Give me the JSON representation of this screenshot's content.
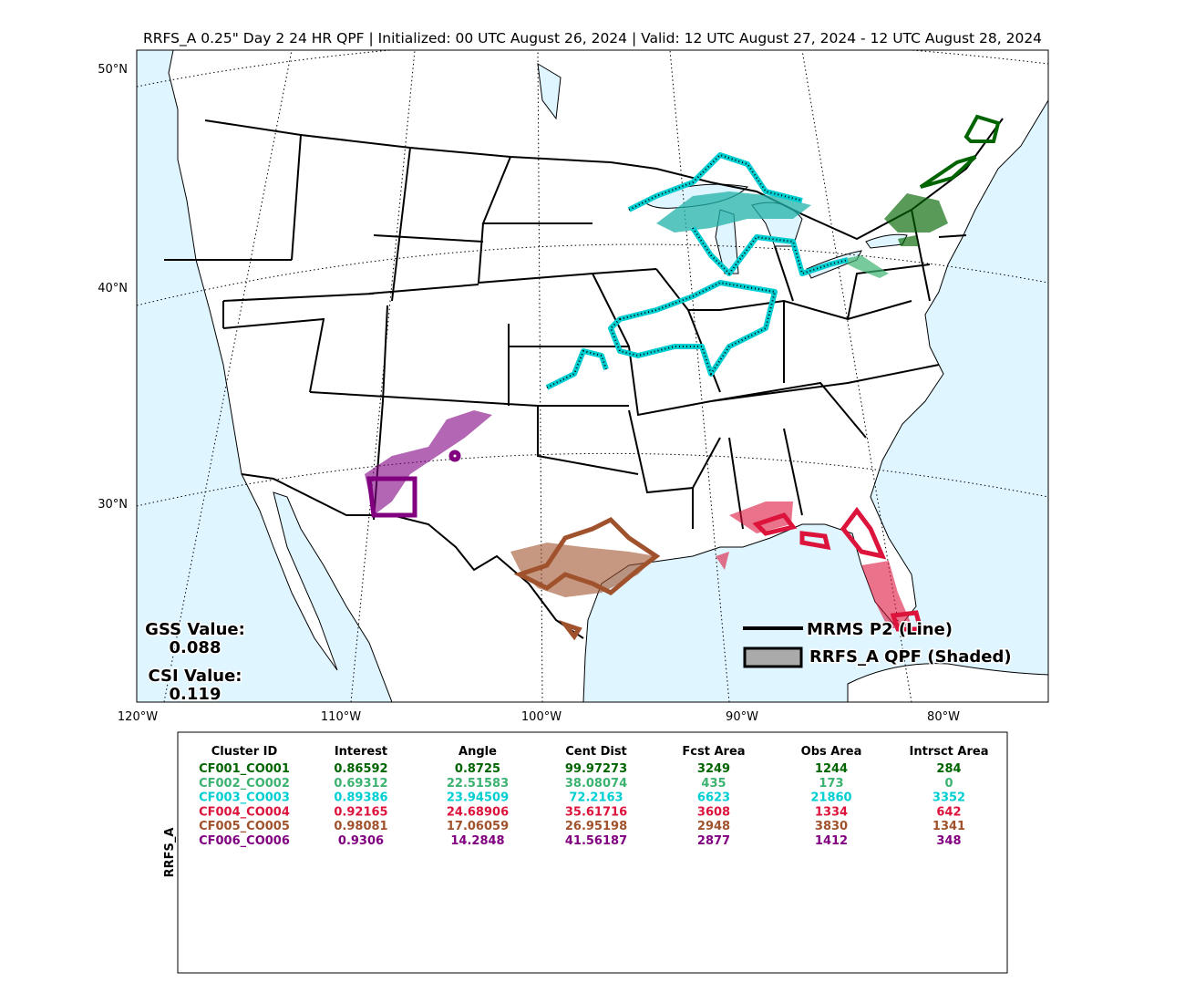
{
  "title": "RRFS_A 0.25\" Day 2 24 HR QPF | Initialized: 00 UTC August 26, 2024 | Valid: 12 UTC August 27, 2024 - 12 UTC August 28, 2024",
  "map": {
    "lat_labels": [
      "50°N",
      "40°N",
      "30°N"
    ],
    "lon_labels": [
      "120°W",
      "110°W",
      "100°W",
      "90°W",
      "80°W"
    ],
    "gss_label": "GSS Value:",
    "gss_value": "0.088",
    "csi_label": "CSI Value:",
    "csi_value": "0.119",
    "legend": [
      "MRMS P2 (Line)",
      "RRFS_A QPF (Shaded)"
    ]
  },
  "table": {
    "row_label": "RRFS_A",
    "columns": [
      "Cluster ID",
      "Interest",
      "Angle",
      "Cent Dist",
      "Fcst Area",
      "Obs Area",
      "Intrsct Area"
    ],
    "rows": [
      {
        "color": "#006400",
        "cells": [
          "CF001_CO001",
          "0.86592",
          "0.8725",
          "99.97273",
          "3249",
          "1244",
          "284"
        ]
      },
      {
        "color": "#3cb371",
        "cells": [
          "CF002_CO002",
          "0.69312",
          "22.51583",
          "38.08074",
          "435",
          "173",
          "0"
        ]
      },
      {
        "color": "#00ced1",
        "cells": [
          "CF003_CO003",
          "0.89386",
          "23.94509",
          "72.2163",
          "6623",
          "21860",
          "3352"
        ]
      },
      {
        "color": "#dc143c",
        "cells": [
          "CF004_CO004",
          "0.92165",
          "24.68906",
          "35.61716",
          "3608",
          "1334",
          "642"
        ]
      },
      {
        "color": "#a0522d",
        "cells": [
          "CF005_CO005",
          "0.98081",
          "17.06059",
          "26.95198",
          "2948",
          "3830",
          "1341"
        ]
      },
      {
        "color": "#800080",
        "cells": [
          "CF006_CO006",
          "0.9306",
          "14.2848",
          "41.56187",
          "2877",
          "1412",
          "348"
        ]
      }
    ]
  }
}
